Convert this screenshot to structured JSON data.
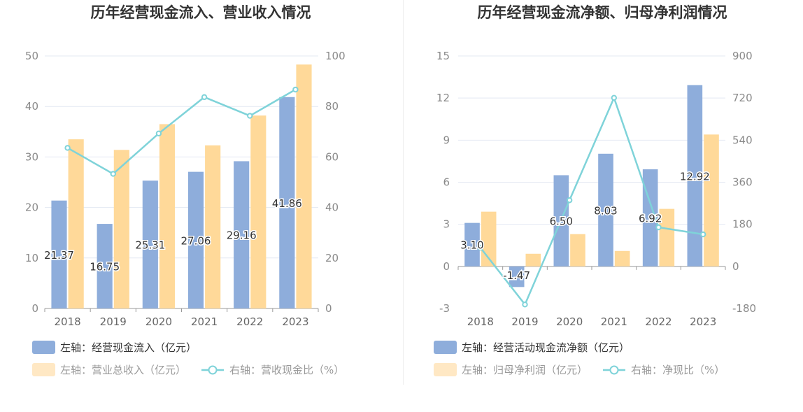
{
  "chart_data": [
    {
      "type": "bar",
      "title": "历年经营现金流入、营业收入情况",
      "categories": [
        "2018",
        "2019",
        "2020",
        "2021",
        "2022",
        "2023"
      ],
      "left_axis": {
        "ticks": [
          0,
          10,
          20,
          30,
          40,
          50
        ],
        "range": [
          0,
          50
        ]
      },
      "right_axis": {
        "ticks": [
          0,
          20,
          40,
          60,
          80,
          100
        ],
        "range": [
          0,
          100
        ]
      },
      "series": [
        {
          "name": "左轴：经营现金流入（亿元）",
          "type": "bar",
          "axis": "left",
          "color": "#8eaddb",
          "values": [
            21.37,
            16.75,
            25.31,
            27.06,
            29.16,
            41.86
          ],
          "labels": [
            "21.37",
            "16.75",
            "25.31",
            "27.06",
            "29.16",
            "41.86"
          ]
        },
        {
          "name": "左轴：营业总收入（亿元）",
          "type": "bar",
          "axis": "left",
          "color": "#ffd999",
          "values": [
            33.5,
            31.4,
            36.5,
            32.3,
            38.2,
            48.3
          ]
        },
        {
          "name": "右轴：营收现金比（%）",
          "type": "line",
          "axis": "right",
          "color": "#7fd3d9",
          "values": [
            63.6,
            53.3,
            69.3,
            83.7,
            76.3,
            86.7
          ]
        }
      ],
      "legend_position": "bottom-left",
      "grid": true
    },
    {
      "type": "bar",
      "title": "历年经营现金流净额、归母净利润情况",
      "categories": [
        "2018",
        "2019",
        "2020",
        "2021",
        "2022",
        "2023"
      ],
      "left_axis": {
        "ticks": [
          -3,
          0,
          3,
          6,
          9,
          12,
          15
        ],
        "range": [
          -3,
          15
        ]
      },
      "right_axis": {
        "ticks": [
          -180,
          0,
          180,
          360,
          540,
          720,
          900
        ],
        "range": [
          -180,
          900
        ]
      },
      "series": [
        {
          "name": "左轴：经营活动现金流净额（亿元）",
          "type": "bar",
          "axis": "left",
          "color": "#8eaddb",
          "values": [
            3.1,
            -1.47,
            6.5,
            8.03,
            6.92,
            12.92
          ],
          "labels": [
            "3.10",
            "-1.47",
            "6.50",
            "8.03",
            "6.92",
            "12.92"
          ]
        },
        {
          "name": "左轴：归母净利润（亿元）",
          "type": "bar",
          "axis": "left",
          "color": "#ffd999",
          "values": [
            3.9,
            0.9,
            2.3,
            1.1,
            4.1,
            9.4
          ]
        },
        {
          "name": "右轴：净现比（%）",
          "type": "line",
          "axis": "right",
          "color": "#7fd3d9",
          "values": [
            80,
            -163,
            283,
            721,
            167,
            137
          ]
        }
      ],
      "legend_position": "bottom-left",
      "grid": true
    }
  ]
}
